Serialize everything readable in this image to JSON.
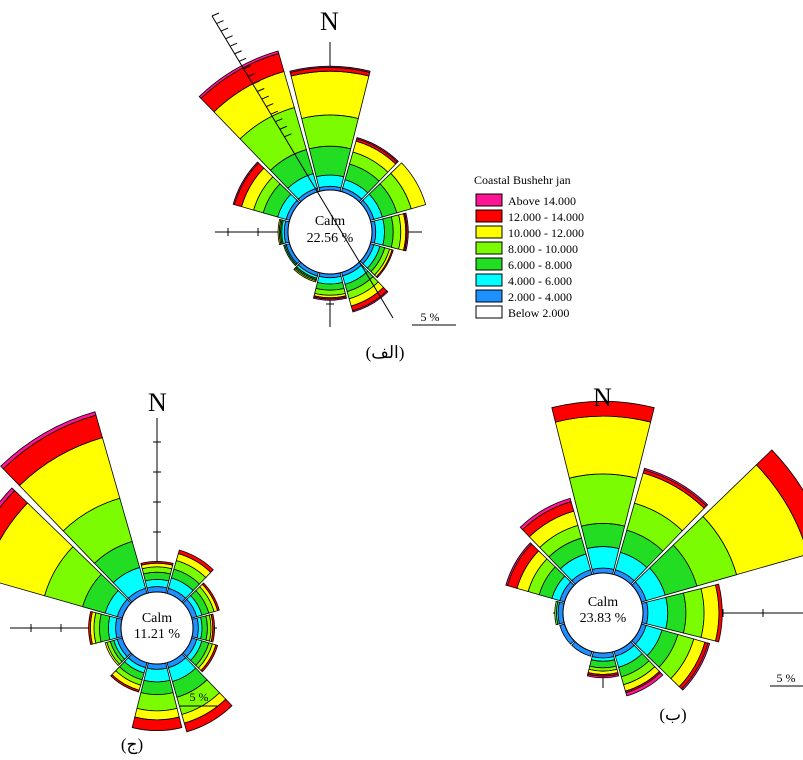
{
  "legend": {
    "title": "Coastal Bushehr  jan",
    "bins": [
      {
        "label": "Above   14.000",
        "color": "#ff1493"
      },
      {
        "label": "12.000 - 14.000",
        "color": "#ff0000"
      },
      {
        "label": "10.000 - 12.000",
        "color": "#ffff00"
      },
      {
        "label": " 8.000 - 10.000",
        "color": "#7cfc00"
      },
      {
        "label": " 6.000 -   8.000",
        "color": "#22dd22"
      },
      {
        "label": " 4.000 -   6.000",
        "color": "#00ffff"
      },
      {
        "label": " 2.000 -   4.000",
        "color": "#1e90ff"
      },
      {
        "label": "Below    2.000",
        "color": "#ffffff"
      }
    ]
  },
  "chart_data": [
    {
      "type": "windrose",
      "caption": "(الف)",
      "north_label": "N",
      "calm_label": "Calm",
      "calm_value": "22.56 %",
      "scale_label": "5 %",
      "sectors_deg": [
        0,
        30,
        60,
        90,
        120,
        150,
        180,
        210,
        240,
        270,
        300,
        330
      ],
      "cumulative_percent": [
        [
          0.3,
          1.2,
          3.5,
          6.0,
          9.5,
          9.8,
          9.9
        ],
        [
          0.3,
          1.0,
          2.3,
          3.3,
          4.2,
          4.4,
          4.5
        ],
        [
          0.3,
          1.0,
          2.2,
          3.4,
          4.6,
          4.6,
          4.6
        ],
        [
          0.3,
          1.0,
          1.7,
          2.3,
          2.7,
          2.8,
          2.9
        ],
        [
          0.3,
          0.8,
          1.2,
          1.6,
          1.8,
          1.9,
          1.9
        ],
        [
          0.3,
          1.0,
          1.6,
          2.2,
          2.8,
          3.2,
          3.3
        ],
        [
          0.3,
          0.8,
          1.3,
          1.7,
          1.9,
          2.0,
          2.1
        ],
        [
          0.3,
          0.5,
          0.6,
          0.7,
          0.8,
          0.8,
          0.8
        ],
        [
          0.3,
          0.4,
          0.5,
          0.5,
          0.5,
          0.5,
          0.5
        ],
        [
          0.3,
          0.5,
          0.6,
          0.7,
          0.8,
          0.8,
          0.8
        ],
        [
          0.3,
          1.0,
          2.2,
          3.0,
          4.0,
          4.6,
          4.7
        ],
        [
          0.3,
          1.5,
          3.5,
          7.0,
          10.0,
          11.5,
          11.7
        ]
      ]
    },
    {
      "type": "windrose",
      "caption": "(ب)",
      "north_label": "N",
      "calm_label": "Calm",
      "calm_value": "23.83 %",
      "scale_label": "5 %",
      "sectors_deg": [
        0,
        30,
        60,
        90,
        120,
        150,
        180,
        210,
        240,
        270,
        300,
        330
      ],
      "cumulative_percent": [
        [
          0.3,
          1.6,
          3.0,
          6.0,
          9.5,
          10.4,
          10.4
        ],
        [
          0.3,
          1.4,
          2.8,
          4.5,
          6.4,
          6.6,
          6.7
        ],
        [
          0.3,
          1.5,
          3.5,
          6.0,
          10.5,
          11.8,
          11.8
        ],
        [
          0.3,
          1.5,
          2.6,
          3.7,
          4.6,
          4.8,
          4.8
        ],
        [
          0.3,
          1.3,
          2.3,
          3.3,
          4.0,
          4.2,
          4.3
        ],
        [
          0.3,
          1.0,
          1.6,
          2.1,
          2.5,
          2.6,
          2.8
        ],
        [
          0.3,
          0.5,
          0.9,
          1.1,
          1.3,
          1.4,
          1.5
        ],
        [
          0.3,
          0.3,
          0.3,
          0.3,
          0.3,
          0.3,
          0.3
        ],
        [
          0.3,
          0.3,
          0.3,
          0.3,
          0.3,
          0.3,
          0.3
        ],
        [
          0.3,
          0.4,
          0.4,
          0.5,
          0.5,
          0.5,
          0.5
        ],
        [
          0.3,
          0.8,
          1.6,
          2.3,
          3.0,
          3.6,
          3.7
        ],
        [
          0.3,
          1.3,
          2.3,
          3.1,
          4.0,
          4.6,
          4.8
        ]
      ]
    },
    {
      "type": "windrose",
      "caption": "(ج)",
      "north_label": "N",
      "calm_label": "Calm",
      "calm_value": "11.21 %",
      "scale_label": "5 %",
      "sectors_deg": [
        0,
        30,
        60,
        90,
        120,
        150,
        180,
        210,
        240,
        270,
        300,
        330
      ],
      "cumulative_percent": [
        [
          0.3,
          0.7,
          1.1,
          1.4,
          1.6,
          1.7,
          1.7
        ],
        [
          0.3,
          0.9,
          1.4,
          1.9,
          2.3,
          2.5,
          2.5
        ],
        [
          0.3,
          0.6,
          1.0,
          1.3,
          1.5,
          1.6,
          1.6
        ],
        [
          0.3,
          0.5,
          0.8,
          1.0,
          1.1,
          1.2,
          1.2
        ],
        [
          0.3,
          0.6,
          1.0,
          1.2,
          1.4,
          1.5,
          1.5
        ],
        [
          0.3,
          1.1,
          2.0,
          3.0,
          3.5,
          4.0,
          4.0
        ],
        [
          0.3,
          1.0,
          1.7,
          2.6,
          3.1,
          3.7,
          3.7
        ],
        [
          0.3,
          0.6,
          1.0,
          1.3,
          1.6,
          1.7,
          1.7
        ],
        [
          0.3,
          0.5,
          0.7,
          0.9,
          1.0,
          1.0,
          1.0
        ],
        [
          0.3,
          0.7,
          1.2,
          1.5,
          1.7,
          1.8,
          1.8
        ],
        [
          0.3,
          1.0,
          2.3,
          4.5,
          8.0,
          9.0,
          9.2
        ],
        [
          0.3,
          1.5,
          3.0,
          5.5,
          9.0,
          10.3,
          10.5
        ]
      ]
    }
  ]
}
